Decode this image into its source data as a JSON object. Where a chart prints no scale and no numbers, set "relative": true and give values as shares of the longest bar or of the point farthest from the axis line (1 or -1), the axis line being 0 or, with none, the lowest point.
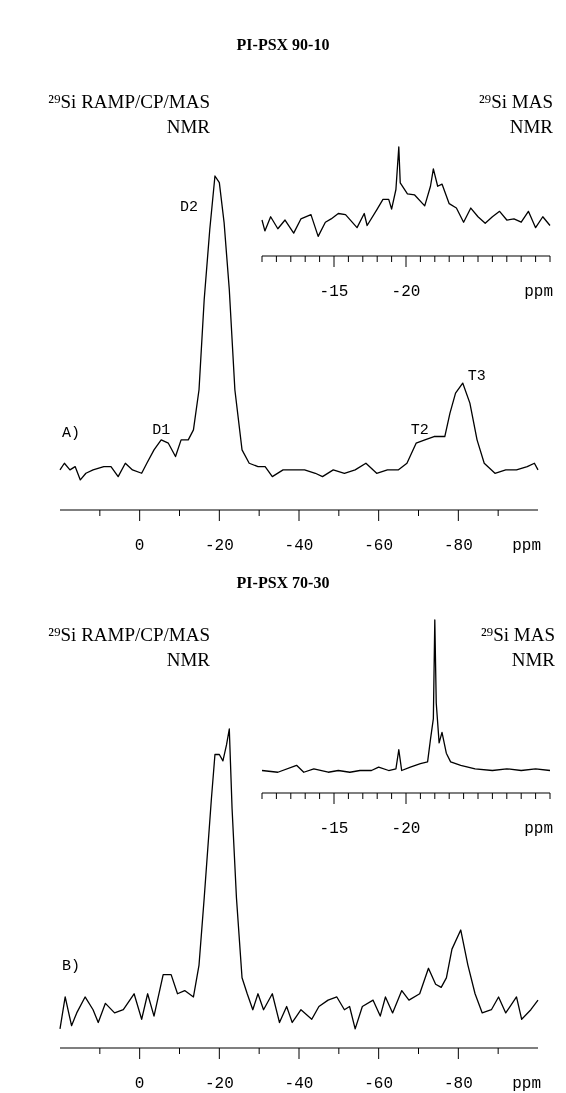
{
  "chart_data": [
    {
      "type": "line",
      "title": "PI-PSX 90-10",
      "xlabel": "ppm",
      "relative": true,
      "tick_labels": "x",
      "xlim": [
        20,
        -100
      ],
      "xticks": [
        {
          "value": 10,
          "label": null
        },
        0,
        {
          "value": -10,
          "label": null
        },
        -20,
        {
          "value": -30,
          "label": null
        },
        -40,
        {
          "value": -50,
          "label": null
        },
        -60,
        {
          "value": -70,
          "label": null
        },
        -80,
        {
          "value": -90,
          "label": null
        }
      ],
      "annotations": [
        "²⁹Si RAMP/CP/MAS\nNMR",
        "A)",
        {
          "text": "D1",
          "x": -5.4,
          "y": 0.21
        },
        {
          "text": "D2",
          "x": -18.9,
          "y": 1.0
        },
        {
          "text": "T2",
          "x": -71.6,
          "y": 0.21
        },
        {
          "text": "T3",
          "x": -81.1,
          "y": 0.38
        }
      ],
      "series": [
        {
          "color": "#000000",
          "x": [
            20,
            18.9,
            17.5,
            16.2,
            14.9,
            13.5,
            11.7,
            9,
            7.2,
            5.4,
            3.6,
            1.8,
            -0.5,
            -1.8,
            -3.6,
            -5.4,
            -7.2,
            -9,
            -10.4,
            -12.2,
            -13.5,
            -14.9,
            -16.2,
            -17.6,
            -18.9,
            -20,
            -21.2,
            -22.5,
            -23.9,
            -25.7,
            -27.5,
            -29.7,
            -31.5,
            -33.3,
            -36,
            -38.7,
            -41.4,
            -44.1,
            -45.9,
            -48.6,
            -51.4,
            -54.1,
            -56.8,
            -59.5,
            -62.2,
            -64.9,
            -67.1,
            -69.4,
            -71.6,
            -73.9,
            -76.6,
            -77.9,
            -79.3,
            -81.1,
            -82.9,
            -84.7,
            -86.5,
            -89.2,
            -91.9,
            -94.6,
            -97.3,
            -99.1,
            -100
          ],
          "values": [
            0.12,
            0.14,
            0.12,
            0.13,
            0.09,
            0.11,
            0.12,
            0.13,
            0.13,
            0.1,
            0.14,
            0.12,
            0.11,
            0.14,
            0.18,
            0.21,
            0.2,
            0.16,
            0.21,
            0.21,
            0.24,
            0.36,
            0.63,
            0.84,
            1.0,
            0.98,
            0.86,
            0.66,
            0.36,
            0.18,
            0.14,
            0.13,
            0.13,
            0.1,
            0.12,
            0.12,
            0.12,
            0.11,
            0.1,
            0.12,
            0.11,
            0.12,
            0.14,
            0.11,
            0.12,
            0.12,
            0.14,
            0.2,
            0.21,
            0.22,
            0.22,
            0.29,
            0.35,
            0.38,
            0.32,
            0.21,
            0.14,
            0.11,
            0.12,
            0.12,
            0.13,
            0.14,
            0.12
          ]
        }
      ]
    },
    {
      "type": "line",
      "xlabel": "ppm",
      "relative": true,
      "tick_labels": "x",
      "xlim": [
        -10,
        -30
      ],
      "xticks": [
        {
          "value": -10,
          "label": null
        },
        {
          "value": -11,
          "label": null
        },
        {
          "value": -12,
          "label": null
        },
        {
          "value": -13,
          "label": null
        },
        {
          "value": -14,
          "label": null
        },
        -15,
        {
          "value": -16,
          "label": null
        },
        {
          "value": -17,
          "label": null
        },
        {
          "value": -18,
          "label": null
        },
        {
          "value": -19,
          "label": null
        },
        -20,
        {
          "value": -21,
          "label": null
        },
        {
          "value": -22,
          "label": null
        },
        {
          "value": -23,
          "label": null
        },
        {
          "value": -24,
          "label": null
        },
        {
          "value": -25,
          "label": null
        },
        {
          "value": -26,
          "label": null
        },
        {
          "value": -27,
          "label": null
        },
        {
          "value": -28,
          "label": null
        },
        {
          "value": -29,
          "label": null
        },
        {
          "value": -30,
          "label": null
        }
      ],
      "annotations": [
        "²⁹Si MAS\nNMR"
      ],
      "series": [
        {
          "color": "#000000",
          "x": [
            -10,
            -10.2,
            -10.6,
            -11.1,
            -11.6,
            -12.2,
            -12.7,
            -13.4,
            -13.9,
            -14.4,
            -14.8,
            -15.3,
            -15.8,
            -16.6,
            -17.1,
            -17.3,
            -18,
            -18.4,
            -18.8,
            -19,
            -19.3,
            -19.5,
            -19.6,
            -20.1,
            -20.6,
            -21.3,
            -21.7,
            -21.9,
            -22.2,
            -22.5,
            -23,
            -23.5,
            -24,
            -24.5,
            -25,
            -25.5,
            -26,
            -26.5,
            -27,
            -27.5,
            -28,
            -28.5,
            -29,
            -29.5,
            -30
          ],
          "values": [
            0.33,
            0.23,
            0.36,
            0.25,
            0.33,
            0.21,
            0.34,
            0.38,
            0.18,
            0.31,
            0.34,
            0.39,
            0.38,
            0.26,
            0.39,
            0.28,
            0.43,
            0.52,
            0.52,
            0.43,
            0.61,
            1.0,
            0.67,
            0.57,
            0.56,
            0.46,
            0.64,
            0.8,
            0.64,
            0.66,
            0.48,
            0.44,
            0.31,
            0.44,
            0.36,
            0.3,
            0.36,
            0.41,
            0.33,
            0.34,
            0.31,
            0.41,
            0.26,
            0.36,
            0.28
          ]
        }
      ]
    },
    {
      "type": "line",
      "title": "PI-PSX 70-30",
      "xlabel": "ppm",
      "relative": true,
      "tick_labels": "x",
      "xlim": [
        20,
        -100
      ],
      "xticks": [
        {
          "value": 10,
          "label": null
        },
        0,
        {
          "value": -10,
          "label": null
        },
        -20,
        {
          "value": -30,
          "label": null
        },
        -40,
        {
          "value": -50,
          "label": null
        },
        -60,
        {
          "value": -70,
          "label": null
        },
        -80,
        {
          "value": -90,
          "label": null
        }
      ],
      "annotations": [
        "²⁹Si RAMP/CP/MAS\nNMR",
        "B)"
      ],
      "series": [
        {
          "color": "#000000",
          "x": [
            20,
            18.7,
            17.1,
            15.8,
            13.7,
            11.7,
            10.4,
            8.6,
            6.3,
            4.1,
            1.4,
            -0.5,
            -2,
            -3.6,
            -5.9,
            -7.9,
            -9.5,
            -11.3,
            -13.5,
            -14.9,
            -16.2,
            -18,
            -18.9,
            -20,
            -20.9,
            -21.8,
            -22.5,
            -23.2,
            -24.3,
            -25.7,
            -27,
            -28.4,
            -29.7,
            -31.1,
            -33.3,
            -35.1,
            -36.9,
            -38.3,
            -40.5,
            -43.2,
            -45,
            -47.3,
            -49.5,
            -51.4,
            -52.7,
            -54.1,
            -55.9,
            -58.6,
            -60.4,
            -61.7,
            -63.5,
            -65.8,
            -67.6,
            -70.3,
            -72.5,
            -74.3,
            -75.7,
            -77,
            -78.4,
            -80.6,
            -82.4,
            -84.2,
            -86,
            -88.3,
            -90.1,
            -91.9,
            -94.6,
            -95.9,
            -98.2,
            -100
          ],
          "values": [
            0.06,
            0.16,
            0.07,
            0.11,
            0.16,
            0.12,
            0.08,
            0.14,
            0.11,
            0.12,
            0.17,
            0.09,
            0.17,
            0.1,
            0.23,
            0.23,
            0.17,
            0.18,
            0.16,
            0.26,
            0.47,
            0.78,
            0.92,
            0.92,
            0.9,
            0.95,
            1.0,
            0.75,
            0.47,
            0.22,
            0.17,
            0.12,
            0.17,
            0.12,
            0.17,
            0.08,
            0.13,
            0.08,
            0.12,
            0.09,
            0.13,
            0.15,
            0.16,
            0.12,
            0.13,
            0.06,
            0.13,
            0.15,
            0.1,
            0.16,
            0.11,
            0.18,
            0.15,
            0.17,
            0.25,
            0.2,
            0.19,
            0.22,
            0.31,
            0.37,
            0.26,
            0.17,
            0.11,
            0.12,
            0.16,
            0.11,
            0.16,
            0.09,
            0.12,
            0.15
          ]
        }
      ]
    },
    {
      "type": "line",
      "xlabel": "ppm",
      "relative": true,
      "tick_labels": "x",
      "xlim": [
        -10,
        -30
      ],
      "xticks": [
        {
          "value": -10,
          "label": null
        },
        {
          "value": -11,
          "label": null
        },
        {
          "value": -12,
          "label": null
        },
        {
          "value": -13,
          "label": null
        },
        {
          "value": -14,
          "label": null
        },
        -15,
        {
          "value": -16,
          "label": null
        },
        {
          "value": -17,
          "label": null
        },
        {
          "value": -18,
          "label": null
        },
        {
          "value": -19,
          "label": null
        },
        -20,
        {
          "value": -21,
          "label": null
        },
        {
          "value": -22,
          "label": null
        },
        {
          "value": -23,
          "label": null
        },
        {
          "value": -24,
          "label": null
        },
        {
          "value": -25,
          "label": null
        },
        {
          "value": -26,
          "label": null
        },
        {
          "value": -27,
          "label": null
        },
        {
          "value": -28,
          "label": null
        },
        {
          "value": -29,
          "label": null
        },
        {
          "value": -30,
          "label": null
        }
      ],
      "annotations": [
        "²⁹Si MAS\nNMR"
      ],
      "series": [
        {
          "color": "#000000",
          "x": [
            -10,
            -11.1,
            -12.4,
            -12.9,
            -13.6,
            -14.6,
            -15.3,
            -16.1,
            -16.8,
            -17.6,
            -18.1,
            -18.8,
            -19.3,
            -19.5,
            -19.7,
            -20.3,
            -21,
            -21.5,
            -21.7,
            -21.9,
            -22,
            -22.1,
            -22.3,
            -22.5,
            -22.8,
            -23.1,
            -23.8,
            -24.8,
            -26,
            -27,
            -28,
            -29,
            -30
          ],
          "values": [
            0.13,
            0.12,
            0.16,
            0.12,
            0.14,
            0.12,
            0.13,
            0.12,
            0.13,
            0.13,
            0.15,
            0.13,
            0.14,
            0.25,
            0.13,
            0.15,
            0.17,
            0.18,
            0.31,
            0.43,
            1.0,
            0.52,
            0.29,
            0.35,
            0.23,
            0.18,
            0.16,
            0.14,
            0.13,
            0.14,
            0.13,
            0.14,
            0.13
          ]
        }
      ]
    }
  ]
}
